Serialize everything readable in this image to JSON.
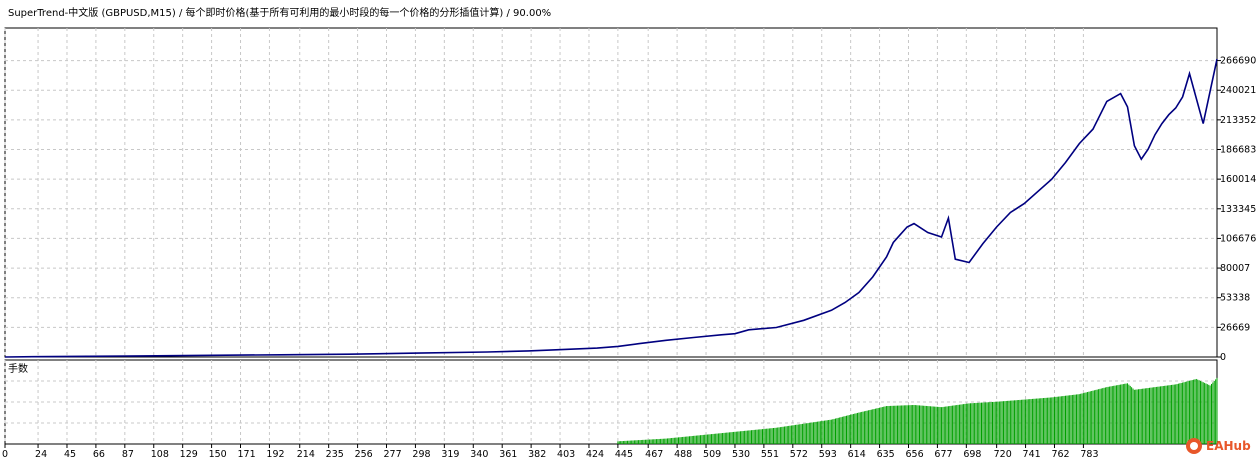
{
  "chart_data": [
    {
      "type": "line",
      "title": "SuperTrend-中文版 (GBPUSD,M15) / 每个即时价格(基于所有可利用的最小时段的每一个价格的分形插值计算) / 90.00%",
      "series": [
        {
          "color": "#000080",
          "x": [
            0,
            20,
            60,
            100,
            150,
            200,
            250,
            300,
            350,
            380,
            400,
            430,
            445,
            460,
            480,
            500,
            520,
            530,
            540,
            560,
            580,
            600,
            610,
            620,
            630,
            640,
            645,
            650,
            655,
            660,
            670,
            680,
            685,
            690,
            700,
            710,
            720,
            730,
            740,
            760,
            770,
            780,
            790,
            800,
            810,
            815,
            820,
            825,
            830,
            835,
            840,
            845,
            850,
            855,
            860,
            870,
            880
          ],
          "y": [
            0,
            300,
            600,
            1000,
            1500,
            2000,
            2500,
            3500,
            4500,
            5500,
            6500,
            8000,
            9500,
            12000,
            15000,
            17500,
            20000,
            21000,
            24500,
            26500,
            33000,
            42000,
            49000,
            58000,
            72000,
            90000,
            103000,
            110000,
            117000,
            120000,
            112000,
            108000,
            125000,
            88000,
            85000,
            102000,
            117000,
            130000,
            138000,
            160000,
            175000,
            192000,
            205000,
            230000,
            237000,
            225000,
            190000,
            178000,
            187000,
            200000,
            210000,
            218000,
            224000,
            234000,
            255000,
            210000,
            268000
          ]
        }
      ],
      "yticks": [
        0,
        26669,
        53338,
        80007,
        106676,
        133345,
        160014,
        186683,
        213352,
        240021,
        266690
      ],
      "ylim": [
        0,
        296000
      ],
      "grid": true
    },
    {
      "type": "bar",
      "title": "手数",
      "series": [
        {
          "color": "#00a000",
          "x": [
            445,
            480,
            520,
            560,
            600,
            620,
            640,
            660,
            680,
            700,
            720,
            740,
            760,
            780,
            800,
            815,
            820,
            835,
            850,
            865,
            875,
            880
          ],
          "y": [
            0.05,
            0.1,
            0.2,
            0.3,
            0.45,
            0.58,
            0.7,
            0.72,
            0.68,
            0.75,
            0.78,
            0.82,
            0.86,
            0.92,
            1.05,
            1.12,
            1.0,
            1.05,
            1.1,
            1.2,
            1.08,
            1.22
          ]
        }
      ],
      "ylim": [
        0,
        1.55
      ],
      "grid": true
    }
  ],
  "xaxis": {
    "ticks": [
      0,
      24,
      45,
      66,
      87,
      108,
      129,
      150,
      171,
      192,
      214,
      235,
      256,
      277,
      298,
      319,
      340,
      361,
      382,
      403,
      424,
      445,
      467,
      488,
      509,
      530,
      551,
      572,
      593,
      614,
      635,
      656,
      677,
      698,
      720,
      741,
      762,
      783
    ],
    "range": [
      0,
      880
    ]
  },
  "watermark": "EAHub"
}
